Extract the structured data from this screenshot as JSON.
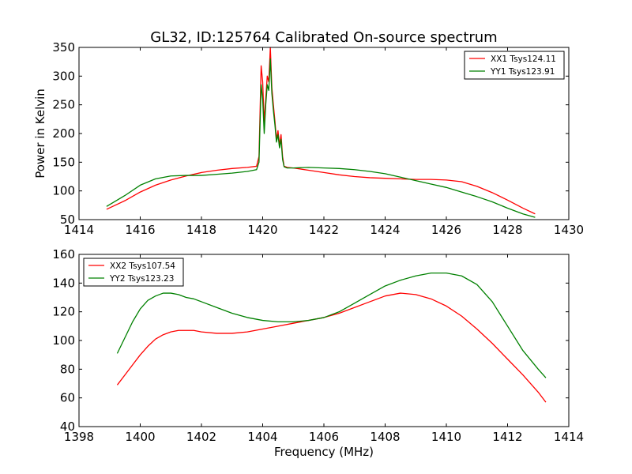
{
  "figure": {
    "title": "GL32, ID:125764 Calibrated On-source spectrum"
  },
  "chart_data": [
    {
      "type": "line",
      "title": "GL32, ID:125764 Calibrated On-source spectrum",
      "xlabel": "",
      "ylabel": "Power in Kelvin",
      "xlim": [
        1414,
        1430
      ],
      "ylim": [
        50,
        350
      ],
      "xticks": [
        1414,
        1416,
        1418,
        1420,
        1422,
        1424,
        1426,
        1428,
        1430
      ],
      "yticks": [
        50,
        100,
        150,
        200,
        250,
        300,
        350
      ],
      "grid": false,
      "legend_position": "top-right",
      "series": [
        {
          "name": "XX1 Tsys124.11",
          "color": "#ff0000",
          "x": [
            1414.9,
            1415.5,
            1416.0,
            1416.5,
            1417.0,
            1417.5,
            1418.0,
            1418.5,
            1419.0,
            1419.5,
            1419.8,
            1419.88,
            1419.95,
            1420.0,
            1420.05,
            1420.1,
            1420.15,
            1420.2,
            1420.25,
            1420.3,
            1420.35,
            1420.4,
            1420.45,
            1420.5,
            1420.55,
            1420.6,
            1420.65,
            1420.7,
            1420.8,
            1421.0,
            1421.5,
            1422.0,
            1422.5,
            1423.0,
            1423.5,
            1424.0,
            1424.5,
            1425.0,
            1425.5,
            1426.0,
            1426.5,
            1427.0,
            1427.5,
            1428.0,
            1428.5,
            1428.9
          ],
          "y": [
            68,
            83,
            98,
            110,
            119,
            126,
            132,
            136,
            139,
            141,
            143,
            160,
            318,
            290,
            220,
            260,
            300,
            290,
            350,
            280,
            250,
            222,
            190,
            205,
            180,
            198,
            160,
            143,
            141,
            140,
            136,
            132,
            128,
            125,
            123,
            122,
            121,
            120,
            120,
            119,
            116,
            108,
            97,
            84,
            70,
            60
          ]
        },
        {
          "name": "YY1 Tsys123.91",
          "color": "#008000",
          "x": [
            1414.9,
            1415.5,
            1416.0,
            1416.5,
            1417.0,
            1417.5,
            1418.0,
            1418.5,
            1419.0,
            1419.5,
            1419.8,
            1419.88,
            1419.95,
            1420.0,
            1420.05,
            1420.1,
            1420.15,
            1420.2,
            1420.25,
            1420.3,
            1420.35,
            1420.4,
            1420.45,
            1420.5,
            1420.55,
            1420.6,
            1420.65,
            1420.7,
            1420.8,
            1421.0,
            1421.5,
            1422.0,
            1422.5,
            1423.0,
            1423.5,
            1424.0,
            1424.5,
            1425.0,
            1425.5,
            1426.0,
            1426.5,
            1427.0,
            1427.5,
            1428.0,
            1428.5,
            1428.9
          ],
          "y": [
            73,
            92,
            110,
            121,
            126,
            127,
            127,
            129,
            131,
            134,
            137,
            150,
            285,
            260,
            200,
            250,
            285,
            275,
            330,
            270,
            240,
            215,
            185,
            198,
            175,
            190,
            155,
            142,
            140,
            140,
            141,
            140,
            139,
            137,
            134,
            130,
            124,
            118,
            112,
            106,
            98,
            90,
            81,
            70,
            60,
            54
          ]
        }
      ]
    },
    {
      "type": "line",
      "title": "",
      "xlabel": "Frequency (MHz)",
      "ylabel": "",
      "xlim": [
        1398,
        1414
      ],
      "ylim": [
        40,
        160
      ],
      "xticks": [
        1398,
        1400,
        1402,
        1404,
        1406,
        1408,
        1410,
        1412,
        1414
      ],
      "yticks": [
        40,
        60,
        80,
        100,
        120,
        140,
        160
      ],
      "grid": false,
      "legend_position": "top-left",
      "series": [
        {
          "name": "XX2 Tsys107.54",
          "color": "#ff0000",
          "x": [
            1399.25,
            1399.5,
            1399.75,
            1400.0,
            1400.25,
            1400.5,
            1400.75,
            1401.0,
            1401.25,
            1401.5,
            1401.75,
            1402.0,
            1402.5,
            1403.0,
            1403.5,
            1404.0,
            1404.5,
            1405.0,
            1405.5,
            1406.0,
            1406.5,
            1407.0,
            1407.5,
            1408.0,
            1408.5,
            1409.0,
            1409.5,
            1410.0,
            1410.5,
            1411.0,
            1411.5,
            1412.0,
            1412.5,
            1413.0,
            1413.25
          ],
          "y": [
            69,
            76,
            83,
            90,
            96,
            101,
            104,
            106,
            107,
            107,
            107,
            106,
            105,
            105,
            106,
            108,
            110,
            112,
            114,
            116,
            119,
            123,
            127,
            131,
            133,
            132,
            129,
            124,
            117,
            108,
            98,
            87,
            76,
            64,
            57
          ]
        },
        {
          "name": "YY2 Tsys123.23",
          "color": "#008000",
          "x": [
            1399.25,
            1399.5,
            1399.75,
            1400.0,
            1400.25,
            1400.5,
            1400.75,
            1401.0,
            1401.25,
            1401.5,
            1401.75,
            1402.0,
            1402.5,
            1403.0,
            1403.5,
            1404.0,
            1404.5,
            1405.0,
            1405.5,
            1406.0,
            1406.5,
            1407.0,
            1407.5,
            1408.0,
            1408.5,
            1409.0,
            1409.5,
            1410.0,
            1410.5,
            1411.0,
            1411.5,
            1412.0,
            1412.5,
            1413.0,
            1413.25
          ],
          "y": [
            91,
            102,
            113,
            122,
            128,
            131,
            133,
            133,
            132,
            130,
            129,
            127,
            123,
            119,
            116,
            114,
            113,
            113,
            114,
            116,
            120,
            126,
            132,
            138,
            142,
            145,
            147,
            147,
            145,
            139,
            127,
            110,
            93,
            80,
            74
          ]
        }
      ]
    }
  ]
}
